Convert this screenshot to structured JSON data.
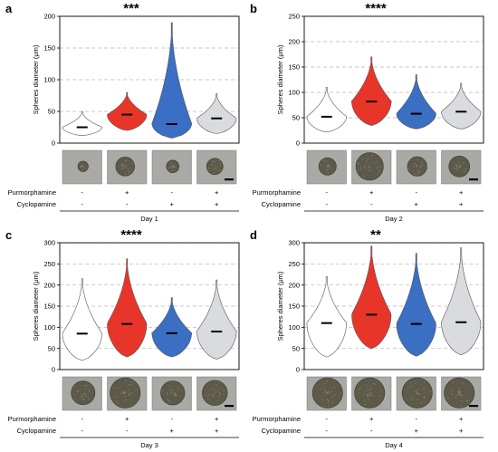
{
  "figure": {
    "conditions": {
      "row1_label": "Purmorphamine",
      "row2_label": "Cyclopamine",
      "purmorphamine": [
        "-",
        "+",
        "-",
        "+"
      ],
      "cyclopamine": [
        "-",
        "-",
        "+",
        "+"
      ]
    },
    "ylabel": "Spheres diameter (μm)"
  },
  "chart_data": [
    {
      "type": "violin",
      "panel": "a",
      "significance": "***",
      "xlabel": "Day 1",
      "ylabel": "Spheres diameter (μm)",
      "ylim": [
        0,
        200
      ],
      "yticks": [
        0,
        50,
        100,
        150,
        200
      ],
      "grid": true,
      "series": [
        {
          "median": 25,
          "min": 12,
          "max": 50,
          "color": "#ffffff"
        },
        {
          "median": 45,
          "min": 20,
          "max": 80,
          "color": "#e8352a"
        },
        {
          "median": 30,
          "min": 8,
          "max": 190,
          "color": "#3a6fc4"
        },
        {
          "median": 39,
          "min": 15,
          "max": 78,
          "color": "#d9dbdf"
        }
      ]
    },
    {
      "type": "violin",
      "panel": "b",
      "significance": "****",
      "xlabel": "Day 2",
      "ylabel": "Spheres diameter (μm)",
      "ylim": [
        0,
        250
      ],
      "yticks": [
        0,
        50,
        100,
        150,
        200,
        250
      ],
      "grid": true,
      "series": [
        {
          "median": 52,
          "min": 22,
          "max": 110,
          "color": "#ffffff"
        },
        {
          "median": 82,
          "min": 35,
          "max": 170,
          "color": "#e8352a"
        },
        {
          "median": 58,
          "min": 28,
          "max": 135,
          "color": "#3a6fc4"
        },
        {
          "median": 62,
          "min": 28,
          "max": 118,
          "color": "#d9dbdf"
        }
      ]
    },
    {
      "type": "violin",
      "panel": "c",
      "significance": "****",
      "xlabel": "Day 3",
      "ylabel": "Spheres diameter (μm)",
      "ylim": [
        0,
        300
      ],
      "yticks": [
        0,
        50,
        100,
        150,
        200,
        250,
        300
      ],
      "grid": true,
      "series": [
        {
          "median": 85,
          "min": 22,
          "max": 215,
          "color": "#ffffff"
        },
        {
          "median": 108,
          "min": 30,
          "max": 262,
          "color": "#e8352a"
        },
        {
          "median": 86,
          "min": 30,
          "max": 170,
          "color": "#3a6fc4"
        },
        {
          "median": 90,
          "min": 25,
          "max": 212,
          "color": "#d9dbdf"
        }
      ]
    },
    {
      "type": "violin",
      "panel": "d",
      "significance": "**",
      "xlabel": "Day 4",
      "ylabel": "Spheres diameter (μm)",
      "ylim": [
        0,
        300
      ],
      "yticks": [
        0,
        50,
        100,
        150,
        200,
        250,
        300
      ],
      "grid": true,
      "series": [
        {
          "median": 110,
          "min": 30,
          "max": 220,
          "color": "#ffffff"
        },
        {
          "median": 130,
          "min": 50,
          "max": 292,
          "color": "#e8352a"
        },
        {
          "median": 108,
          "min": 32,
          "max": 275,
          "color": "#3a6fc4"
        },
        {
          "median": 112,
          "min": 35,
          "max": 288,
          "color": "#d9dbdf"
        }
      ]
    }
  ]
}
